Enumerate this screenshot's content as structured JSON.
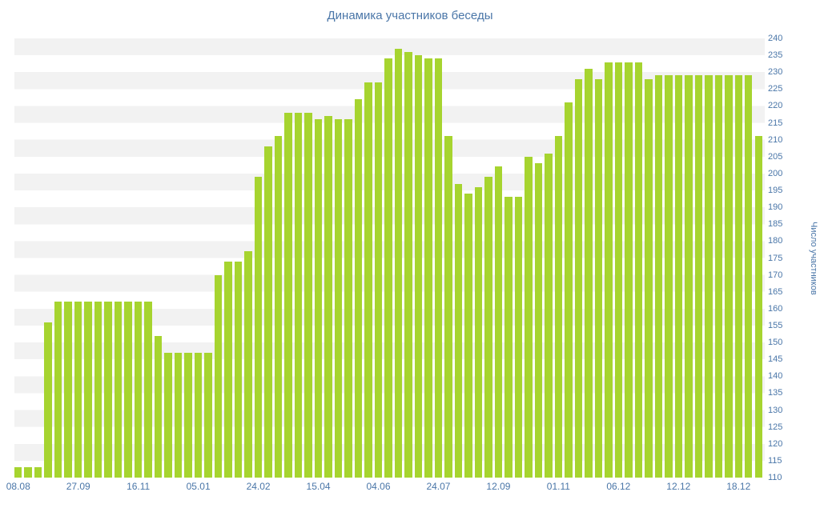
{
  "title": "Динамика участников беседы",
  "colors": {
    "bar": "#a6d42f",
    "text": "#4a76a8",
    "stripe": "#f2f2f2",
    "background": "#ffffff"
  },
  "chart_data": {
    "type": "bar",
    "title": "Динамика участников беседы",
    "xlabel": "",
    "ylabel": "Число участников",
    "ylim": [
      110,
      240
    ],
    "y_ticks": [
      110,
      115,
      120,
      125,
      130,
      135,
      140,
      145,
      150,
      155,
      160,
      165,
      170,
      175,
      180,
      185,
      190,
      195,
      200,
      205,
      210,
      215,
      220,
      225,
      230,
      235,
      240
    ],
    "x_tick_labels": [
      "08.08",
      "27.09",
      "16.11",
      "05.01",
      "24.02",
      "15.04",
      "04.06",
      "24.07",
      "12.09",
      "01.11",
      "06.12",
      "12.12",
      "18.12"
    ],
    "x_tick_bar_interval": 6,
    "grid": "horizontal-stripes",
    "legend_position": "none",
    "values": [
      113,
      113,
      113,
      156,
      162,
      162,
      162,
      162,
      162,
      162,
      162,
      162,
      162,
      162,
      152,
      147,
      147,
      147,
      147,
      147,
      170,
      174,
      174,
      177,
      199,
      208,
      211,
      218,
      218,
      218,
      216,
      217,
      216,
      216,
      222,
      227,
      227,
      234,
      237,
      236,
      235,
      234,
      234,
      211,
      197,
      194,
      196,
      199,
      202,
      193,
      193,
      205,
      203,
      206,
      211,
      221,
      228,
      231,
      228,
      233,
      233,
      233,
      233,
      228,
      229,
      229,
      229,
      229,
      229,
      229,
      229,
      229,
      229,
      229,
      211
    ]
  }
}
